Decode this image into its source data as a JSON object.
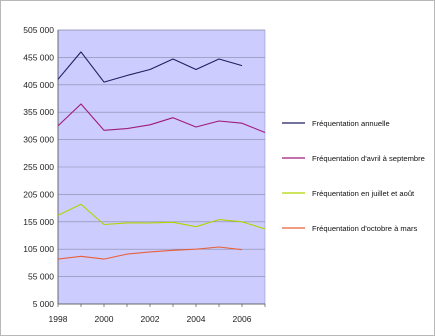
{
  "chart_data": {
    "type": "line",
    "title": "",
    "xlabel": "",
    "ylabel": "",
    "x": [
      1998,
      1999,
      2000,
      2001,
      2002,
      2003,
      2004,
      2005,
      2006,
      2007
    ],
    "xlim": [
      1998,
      2007
    ],
    "ylim": [
      5000,
      505000
    ],
    "y_ticks": [
      "505 000",
      "455 000",
      "405 000",
      "355 000",
      "305 000",
      "255 000",
      "205 000",
      "155 000",
      "105 000",
      "55 000",
      "5 000"
    ],
    "x_ticks": [
      "1998",
      "2000",
      "2002",
      "2004",
      "2006"
    ],
    "grid": true,
    "legend_position": "right",
    "plot_background": "#ccccff",
    "series": [
      {
        "name": "Fréquentation annuelle",
        "color": "#1f1f5f",
        "values": [
          415000,
          465000,
          410000,
          422000,
          433000,
          452000,
          433000,
          452000,
          440000,
          null
        ]
      },
      {
        "name": "Fréquentation d'avril à septembre",
        "color": "#a01a78",
        "values": [
          330000,
          370000,
          322000,
          325000,
          332000,
          345000,
          328000,
          339000,
          335000,
          318000
        ]
      },
      {
        "name": "Fréquentation  en juillet et août",
        "color": "#b4d400",
        "values": [
          167000,
          187000,
          150000,
          153000,
          153000,
          154000,
          146000,
          159000,
          155000,
          142000
        ]
      },
      {
        "name": "Fréquentation d'octobre à mars",
        "color": "#e8603a",
        "values": [
          87000,
          92000,
          87000,
          96000,
          100000,
          103000,
          105000,
          109000,
          104000,
          null
        ]
      }
    ]
  }
}
